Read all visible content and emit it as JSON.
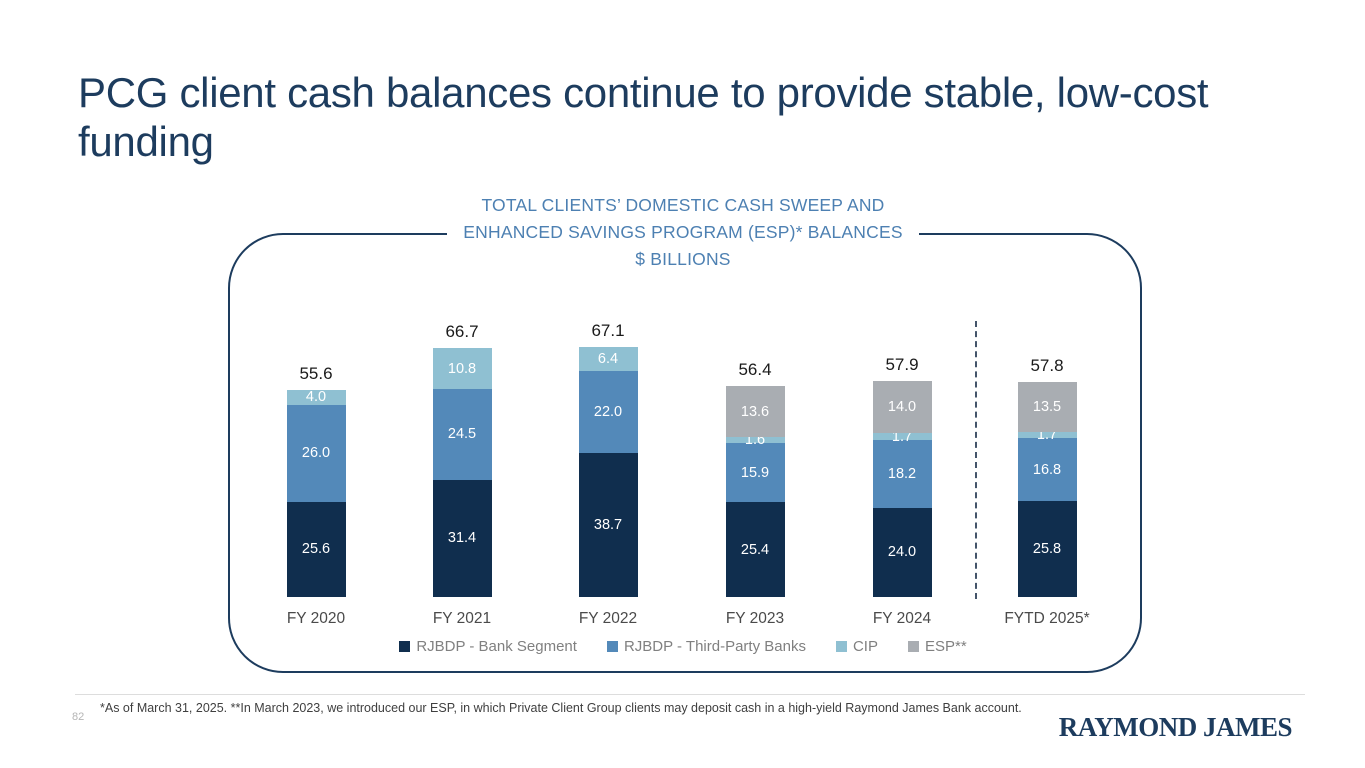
{
  "slide": {
    "title": "PCG client cash balances continue to provide stable, low-cost funding",
    "page_number": "82",
    "footnote": "*As of March 31, 2025.  **In March 2023, we introduced our ESP, in which Private Client Group clients may deposit cash in a high-yield Raymond James Bank account.",
    "logo_text": "RAYMOND JAMES"
  },
  "chart": {
    "title_line1": "TOTAL CLIENTS’ DOMESTIC CASH SWEEP AND",
    "title_line2": "ENHANCED SAVINGS PROGRAM (ESP)* BALANCES",
    "title_line3": "$ BILLIONS"
  },
  "chart_data": {
    "type": "bar",
    "stacked": true,
    "title": "TOTAL CLIENTS’ DOMESTIC CASH SWEEP AND ENHANCED SAVINGS PROGRAM (ESP)* BALANCES",
    "units": "$ BILLIONS",
    "categories": [
      "FY 2020",
      "FY 2021",
      "FY 2022",
      "FY 2023",
      "FY 2024",
      "FYTD 2025*"
    ],
    "series": [
      {
        "name": "RJBDP - Bank Segment",
        "color": "#102e4e",
        "values": [
          25.6,
          31.4,
          38.7,
          25.4,
          24.0,
          25.8
        ]
      },
      {
        "name": "RJBDP - Third-Party Banks",
        "color": "#5389b9",
        "values": [
          26.0,
          24.5,
          22.0,
          15.9,
          18.2,
          16.8
        ]
      },
      {
        "name": "CIP",
        "color": "#8fc0d2",
        "values": [
          4.0,
          10.8,
          6.4,
          1.6,
          1.7,
          1.7
        ]
      },
      {
        "name": "ESP**",
        "color": "#a9adb2",
        "values": [
          null,
          null,
          null,
          13.6,
          14.0,
          13.5
        ]
      }
    ],
    "totals": [
      55.6,
      66.7,
      67.1,
      56.4,
      57.9,
      57.8
    ],
    "value_labels": true,
    "legend_position": "bottom",
    "separator_after_category": "FY 2024",
    "colors": {
      "accent_navy": "#1d3c5e",
      "chart_title_blue": "#4d80b2",
      "separator_dash": "#44546a"
    }
  }
}
